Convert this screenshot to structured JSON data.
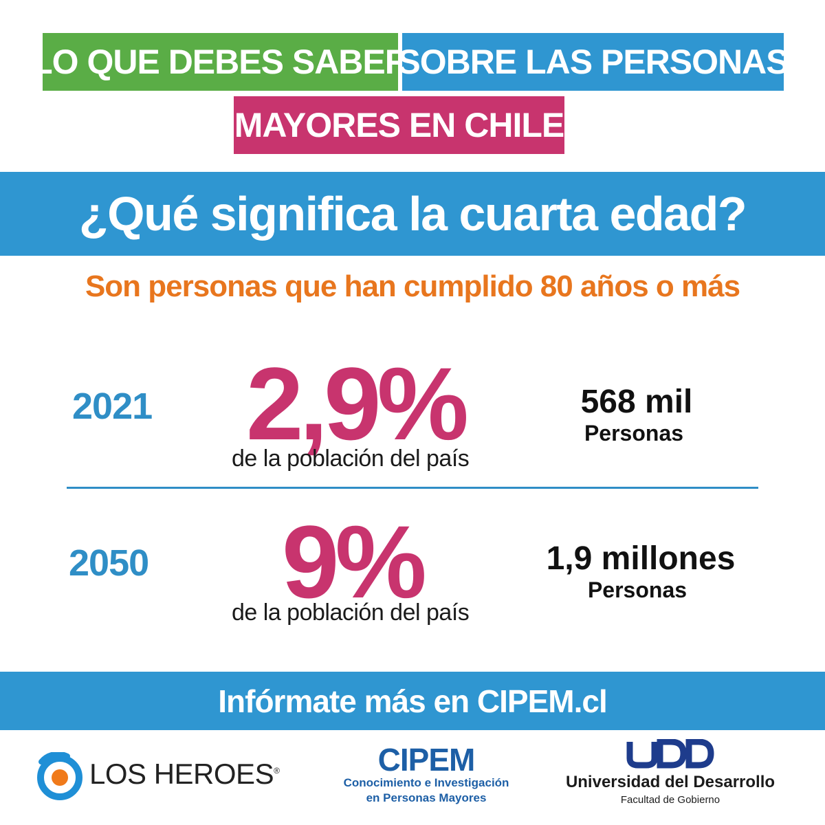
{
  "header": {
    "line1_left": "LO QUE DEBES SABER",
    "line1_right": "SOBRE LAS PERSONAS",
    "line2": "MAYORES EN CHILE"
  },
  "colors": {
    "green": "#5aad46",
    "blue": "#2f96d1",
    "magenta": "#c8346e",
    "orange": "#e8761e"
  },
  "question": "¿Qué significa la cuarta edad?",
  "definition": "Son personas que han cumplido 80 años o más",
  "stats": [
    {
      "year": "2021",
      "percent": "2,9%",
      "percent_caption": "de la población del país",
      "count": "568 mil",
      "count_unit": "Personas"
    },
    {
      "year": "2050",
      "percent": "9%",
      "percent_caption": "de la población del país",
      "count": "1,9 millones",
      "count_unit": "Personas"
    }
  ],
  "footer": {
    "cta": "Infórmate más en CIPEM.cl"
  },
  "logos": {
    "losheroes": {
      "name": "LOS HEROES",
      "mark": "®",
      "icon": "circle-logo-icon"
    },
    "cipem": {
      "name": "CIPEM",
      "subtitle_line1": "Conocimiento e Investigación",
      "subtitle_line2": "en Personas Mayores"
    },
    "udd": {
      "wordmark": "UDD",
      "name": "Universidad del Desarrollo",
      "faculty": "Facultad de Gobierno"
    }
  }
}
